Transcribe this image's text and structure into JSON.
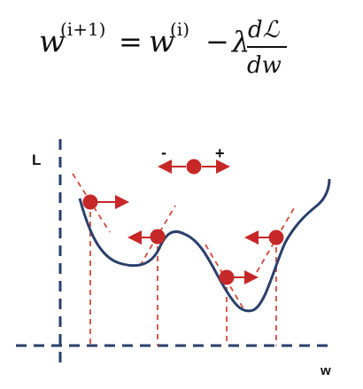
{
  "formula": {
    "w": "w",
    "sup_next": "(i+1)",
    "equals": "=",
    "w2": "w",
    "sup_cur": "(i)",
    "minus": "−",
    "lambda": "λ",
    "numerator": "dℒ",
    "denominator": "dw"
  },
  "axes": {
    "y_label": "L",
    "x_label": "w"
  },
  "legend": {
    "minus_sign": "-",
    "plus_sign": "+"
  },
  "colors": {
    "curve": "#2a3f6b",
    "ball": "#c62828",
    "axis": "#2a3f6b",
    "tangent": "#d04a3a"
  }
}
